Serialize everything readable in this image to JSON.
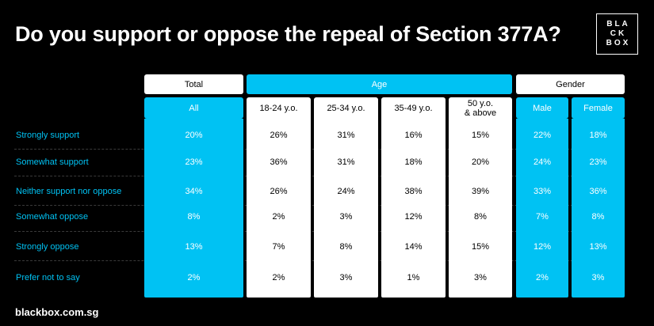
{
  "title": "Do you support or oppose the repeal of Section 377A?",
  "logo": {
    "line1": "BLA",
    "line2": "CK",
    "line3": "BOX"
  },
  "footer": "blackbox.com.sg",
  "colors": {
    "accent": "#00c2f3",
    "background": "#000000",
    "text": "#ffffff"
  },
  "chart_data": {
    "type": "table",
    "title": "Do you support or oppose the repeal of Section 377A?",
    "groups": [
      {
        "label": "Total",
        "columns": [
          "All"
        ]
      },
      {
        "label": "Age",
        "columns": [
          "18-24 y.o.",
          "25-34 y.o.",
          "35-49 y.o.",
          "50 y.o.\n& above"
        ]
      },
      {
        "label": "Gender",
        "columns": [
          "Male",
          "Female"
        ]
      }
    ],
    "columns": [
      "All",
      "18-24 y.o.",
      "25-34 y.o.",
      "35-49 y.o.",
      "50 y.o.\n& above",
      "Male",
      "Female"
    ],
    "rows": [
      "Strongly support",
      "Somewhat support",
      "Neither support nor oppose",
      "Somewhat oppose",
      "Strongly oppose",
      "Prefer not to say"
    ],
    "values": [
      [
        "20%",
        "26%",
        "31%",
        "16%",
        "15%",
        "22%",
        "18%"
      ],
      [
        "23%",
        "36%",
        "31%",
        "18%",
        "20%",
        "24%",
        "23%"
      ],
      [
        "34%",
        "26%",
        "24%",
        "38%",
        "39%",
        "33%",
        "36%"
      ],
      [
        "8%",
        "2%",
        "3%",
        "12%",
        "8%",
        "7%",
        "8%"
      ],
      [
        "13%",
        "7%",
        "8%",
        "14%",
        "15%",
        "12%",
        "13%"
      ],
      [
        "2%",
        "2%",
        "3%",
        "1%",
        "3%",
        "2%",
        "3%"
      ]
    ]
  }
}
